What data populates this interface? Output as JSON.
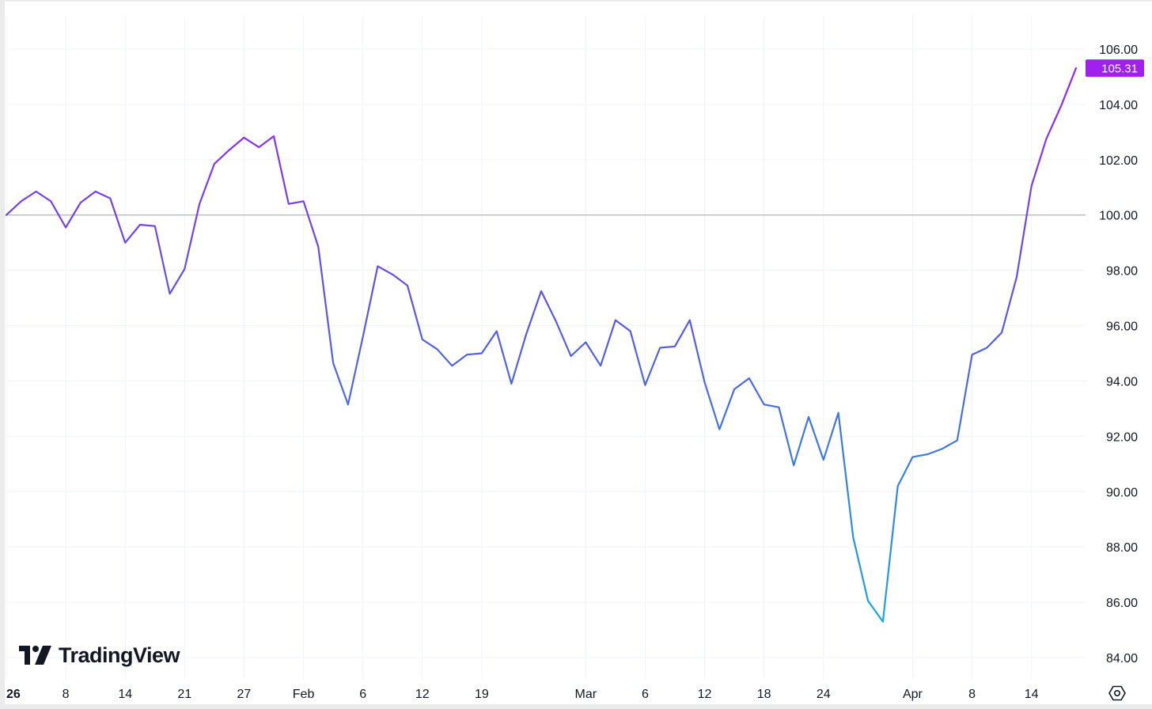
{
  "brand": {
    "name": "TradingView"
  },
  "icons": {
    "logo": "tradingview-logo-icon",
    "settings": "settings-hexagon-icon"
  },
  "colors": {
    "line_top": "#a020f0",
    "line_mid": "#5a55e6",
    "line_bottom": "#17a7e0",
    "baseline": "#b2b5be",
    "grid": "#f0f3fa",
    "label_bg": "#a020f0",
    "text": "#131722"
  },
  "chart_data": {
    "type": "line",
    "title": "",
    "xlabel": "",
    "ylabel": "",
    "ylim": [
      83.5,
      106.6
    ],
    "y_ticks": [
      {
        "value": 106,
        "label": "106.00"
      },
      {
        "value": 104,
        "label": "104.00"
      },
      {
        "value": 102,
        "label": "102.00"
      },
      {
        "value": 100,
        "label": "100.00"
      },
      {
        "value": 98,
        "label": "98.00"
      },
      {
        "value": 96,
        "label": "96.00"
      },
      {
        "value": 94,
        "label": "94.00"
      },
      {
        "value": 92,
        "label": "92.00"
      },
      {
        "value": 90,
        "label": "90.00"
      },
      {
        "value": 88,
        "label": "88.00"
      },
      {
        "value": 86,
        "label": "86.00"
      },
      {
        "value": 84,
        "label": "84.00"
      }
    ],
    "x_ticks": [
      {
        "index": 0,
        "label": "26",
        "bold": true
      },
      {
        "index": 4,
        "label": "8"
      },
      {
        "index": 8,
        "label": "14"
      },
      {
        "index": 12,
        "label": "21"
      },
      {
        "index": 16,
        "label": "27"
      },
      {
        "index": 20,
        "label": "Feb"
      },
      {
        "index": 24,
        "label": "6"
      },
      {
        "index": 28,
        "label": "12"
      },
      {
        "index": 32,
        "label": "19"
      },
      {
        "index": 39,
        "label": "Mar"
      },
      {
        "index": 43,
        "label": "6"
      },
      {
        "index": 47,
        "label": "12"
      },
      {
        "index": 51,
        "label": "18"
      },
      {
        "index": 55,
        "label": "24"
      },
      {
        "index": 61,
        "label": "Apr"
      },
      {
        "index": 65,
        "label": "8"
      },
      {
        "index": 69,
        "label": "14"
      }
    ],
    "baseline": 100,
    "last_value_label": "105.31",
    "series": [
      {
        "values": [
          100.0,
          100.5,
          100.85,
          100.5,
          99.55,
          100.45,
          100.85,
          100.6,
          99.0,
          99.65,
          99.6,
          97.15,
          98.05,
          100.4,
          101.85,
          102.35,
          102.8,
          102.45,
          102.85,
          100.4,
          100.5,
          98.85,
          94.65,
          93.15,
          95.6,
          98.15,
          97.85,
          97.45,
          95.5,
          95.15,
          94.55,
          94.95,
          95.0,
          95.8,
          93.9,
          95.7,
          97.25,
          96.15,
          94.9,
          95.4,
          94.55,
          96.2,
          95.8,
          93.85,
          95.2,
          95.25,
          96.2,
          93.95,
          92.25,
          93.7,
          94.1,
          93.15,
          93.05,
          90.95,
          92.7,
          91.15,
          92.85,
          88.35,
          86.05,
          85.3,
          90.2,
          91.25,
          91.35,
          91.55,
          91.85,
          94.95,
          95.2,
          95.75,
          97.75,
          101.05,
          102.75,
          103.95,
          105.31
        ]
      }
    ]
  }
}
